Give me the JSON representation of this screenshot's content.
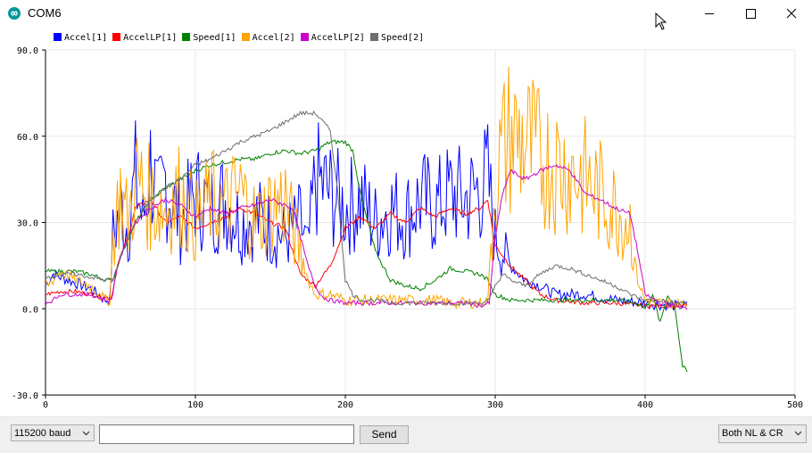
{
  "window": {
    "title": "COM6"
  },
  "icons": {
    "app": "arduino-infinity-icon",
    "minimize": "minimize-icon",
    "maximize": "maximize-icon",
    "close": "close-icon",
    "cursor": "mouse-cursor-icon",
    "dropdown": "chevron-down-icon"
  },
  "footer": {
    "baud_rate": "115200 baud",
    "input_value": "",
    "send_label": "Send",
    "line_ending": "Both NL & CR"
  },
  "chart_data": {
    "type": "line",
    "title": "",
    "xlabel": "",
    "ylabel": "",
    "xlim": [
      0,
      500
    ],
    "ylim": [
      -30,
      90
    ],
    "x_ticks": [
      "0",
      "100",
      "200",
      "300",
      "400",
      "500"
    ],
    "y_ticks": [
      "90.0",
      "60.0",
      "30.0",
      "0.0",
      "-30.0"
    ],
    "grid": true,
    "legend_position": "top-left",
    "series": [
      {
        "name": "Accel[1]",
        "color": "#0000ff",
        "style": "noisy",
        "points": [
          [
            0,
            8
          ],
          [
            5,
            12
          ],
          [
            10,
            11
          ],
          [
            20,
            9
          ],
          [
            30,
            7
          ],
          [
            40,
            3
          ],
          [
            43,
            3
          ],
          [
            45,
            25
          ],
          [
            50,
            35
          ],
          [
            55,
            28
          ],
          [
            60,
            45
          ],
          [
            65,
            30
          ],
          [
            70,
            50
          ],
          [
            75,
            35
          ],
          [
            80,
            45
          ],
          [
            90,
            30
          ],
          [
            100,
            40
          ],
          [
            110,
            35
          ],
          [
            120,
            38
          ],
          [
            130,
            30
          ],
          [
            140,
            32
          ],
          [
            150,
            28
          ],
          [
            160,
            25
          ],
          [
            170,
            30
          ],
          [
            175,
            20
          ],
          [
            180,
            45
          ],
          [
            190,
            40
          ],
          [
            200,
            35
          ],
          [
            210,
            38
          ],
          [
            220,
            30
          ],
          [
            230,
            35
          ],
          [
            240,
            32
          ],
          [
            250,
            38
          ],
          [
            260,
            35
          ],
          [
            270,
            40
          ],
          [
            280,
            38
          ],
          [
            290,
            42
          ],
          [
            295,
            45
          ],
          [
            300,
            25
          ],
          [
            310,
            15
          ],
          [
            320,
            10
          ],
          [
            330,
            8
          ],
          [
            340,
            5
          ],
          [
            360,
            5
          ],
          [
            380,
            3
          ],
          [
            400,
            2
          ],
          [
            420,
            1
          ],
          [
            428,
            1
          ]
        ]
      },
      {
        "name": "AccelLP[1]",
        "color": "#ff0000",
        "style": "smooth",
        "points": [
          [
            0,
            5
          ],
          [
            10,
            6
          ],
          [
            20,
            6
          ],
          [
            30,
            5
          ],
          [
            40,
            4
          ],
          [
            44,
            4
          ],
          [
            48,
            15
          ],
          [
            55,
            25
          ],
          [
            60,
            35
          ],
          [
            70,
            38
          ],
          [
            80,
            30
          ],
          [
            90,
            32
          ],
          [
            100,
            28
          ],
          [
            110,
            30
          ],
          [
            120,
            32
          ],
          [
            130,
            35
          ],
          [
            140,
            33
          ],
          [
            150,
            30
          ],
          [
            160,
            28
          ],
          [
            165,
            20
          ],
          [
            170,
            12
          ],
          [
            180,
            8
          ],
          [
            190,
            15
          ],
          [
            200,
            28
          ],
          [
            210,
            32
          ],
          [
            220,
            28
          ],
          [
            230,
            33
          ],
          [
            240,
            30
          ],
          [
            250,
            35
          ],
          [
            260,
            32
          ],
          [
            270,
            35
          ],
          [
            280,
            33
          ],
          [
            290,
            35
          ],
          [
            295,
            38
          ],
          [
            300,
            22
          ],
          [
            310,
            15
          ],
          [
            320,
            10
          ],
          [
            330,
            5
          ],
          [
            340,
            3
          ],
          [
            360,
            2
          ],
          [
            380,
            2
          ],
          [
            400,
            1
          ],
          [
            420,
            1
          ],
          [
            428,
            1
          ]
        ]
      },
      {
        "name": "Speed[1]",
        "color": "#008000",
        "style": "smooth",
        "points": [
          [
            0,
            13
          ],
          [
            20,
            13
          ],
          [
            30,
            12
          ],
          [
            40,
            10
          ],
          [
            45,
            10
          ],
          [
            50,
            18
          ],
          [
            60,
            30
          ],
          [
            70,
            38
          ],
          [
            80,
            42
          ],
          [
            90,
            45
          ],
          [
            100,
            48
          ],
          [
            110,
            50
          ],
          [
            120,
            51
          ],
          [
            130,
            52
          ],
          [
            140,
            52
          ],
          [
            150,
            54
          ],
          [
            160,
            55
          ],
          [
            170,
            54
          ],
          [
            180,
            55
          ],
          [
            190,
            58
          ],
          [
            200,
            58
          ],
          [
            205,
            55
          ],
          [
            210,
            40
          ],
          [
            220,
            20
          ],
          [
            230,
            10
          ],
          [
            240,
            8
          ],
          [
            250,
            7
          ],
          [
            260,
            10
          ],
          [
            270,
            14
          ],
          [
            280,
            13
          ],
          [
            290,
            12
          ],
          [
            295,
            10
          ],
          [
            300,
            5
          ],
          [
            310,
            3
          ],
          [
            320,
            3
          ],
          [
            330,
            3
          ],
          [
            340,
            3
          ],
          [
            360,
            3
          ],
          [
            380,
            3
          ],
          [
            395,
            2
          ],
          [
            400,
            0
          ],
          [
            405,
            5
          ],
          [
            410,
            -5
          ],
          [
            415,
            5
          ],
          [
            420,
            0
          ],
          [
            425,
            -20
          ],
          [
            428,
            -22
          ]
        ]
      },
      {
        "name": "Accel[2]",
        "color": "#ffa500",
        "style": "noisy",
        "points": [
          [
            0,
            8
          ],
          [
            5,
            10
          ],
          [
            10,
            13
          ],
          [
            20,
            10
          ],
          [
            30,
            8
          ],
          [
            40,
            3
          ],
          [
            43,
            3
          ],
          [
            45,
            25
          ],
          [
            50,
            40
          ],
          [
            55,
            30
          ],
          [
            60,
            45
          ],
          [
            70,
            38
          ],
          [
            80,
            35
          ],
          [
            90,
            40
          ],
          [
            100,
            30
          ],
          [
            110,
            38
          ],
          [
            120,
            35
          ],
          [
            130,
            40
          ],
          [
            140,
            30
          ],
          [
            150,
            35
          ],
          [
            160,
            38
          ],
          [
            165,
            28
          ],
          [
            170,
            20
          ],
          [
            175,
            10
          ],
          [
            180,
            5
          ],
          [
            190,
            5
          ],
          [
            200,
            3
          ],
          [
            210,
            3
          ],
          [
            220,
            3
          ],
          [
            230,
            3
          ],
          [
            240,
            3
          ],
          [
            250,
            3
          ],
          [
            260,
            3
          ],
          [
            270,
            2
          ],
          [
            280,
            2
          ],
          [
            290,
            2
          ],
          [
            295,
            3
          ],
          [
            300,
            45
          ],
          [
            305,
            55
          ],
          [
            310,
            60
          ],
          [
            320,
            58
          ],
          [
            330,
            52
          ],
          [
            340,
            50
          ],
          [
            350,
            48
          ],
          [
            360,
            45
          ],
          [
            370,
            40
          ],
          [
            380,
            35
          ],
          [
            390,
            30
          ],
          [
            395,
            10
          ],
          [
            400,
            3
          ],
          [
            410,
            2
          ],
          [
            420,
            2
          ],
          [
            428,
            1
          ]
        ]
      },
      {
        "name": "AccelLP[2]",
        "color": "#cc00cc",
        "style": "smooth",
        "points": [
          [
            0,
            2
          ],
          [
            5,
            3
          ],
          [
            10,
            5
          ],
          [
            20,
            5
          ],
          [
            30,
            5
          ],
          [
            40,
            3
          ],
          [
            44,
            3
          ],
          [
            48,
            15
          ],
          [
            55,
            25
          ],
          [
            60,
            30
          ],
          [
            70,
            35
          ],
          [
            80,
            38
          ],
          [
            90,
            36
          ],
          [
            100,
            32
          ],
          [
            110,
            35
          ],
          [
            120,
            33
          ],
          [
            130,
            35
          ],
          [
            140,
            36
          ],
          [
            150,
            38
          ],
          [
            160,
            36
          ],
          [
            165,
            35
          ],
          [
            170,
            25
          ],
          [
            175,
            15
          ],
          [
            180,
            8
          ],
          [
            185,
            4
          ],
          [
            190,
            3
          ],
          [
            200,
            2
          ],
          [
            210,
            2
          ],
          [
            220,
            2
          ],
          [
            230,
            2
          ],
          [
            240,
            2
          ],
          [
            250,
            2
          ],
          [
            260,
            2
          ],
          [
            270,
            2
          ],
          [
            280,
            2
          ],
          [
            290,
            1
          ],
          [
            296,
            2
          ],
          [
            300,
            25
          ],
          [
            305,
            40
          ],
          [
            310,
            48
          ],
          [
            320,
            45
          ],
          [
            330,
            48
          ],
          [
            340,
            50
          ],
          [
            350,
            48
          ],
          [
            360,
            40
          ],
          [
            370,
            38
          ],
          [
            380,
            35
          ],
          [
            390,
            33
          ],
          [
            395,
            20
          ],
          [
            400,
            5
          ],
          [
            410,
            2
          ],
          [
            420,
            1
          ],
          [
            428,
            0
          ]
        ]
      },
      {
        "name": "Speed[2]",
        "color": "#6e6e6e",
        "style": "smooth",
        "points": [
          [
            0,
            11
          ],
          [
            10,
            12
          ],
          [
            20,
            12
          ],
          [
            30,
            11
          ],
          [
            40,
            10
          ],
          [
            45,
            10
          ],
          [
            50,
            18
          ],
          [
            60,
            30
          ],
          [
            70,
            38
          ],
          [
            80,
            42
          ],
          [
            90,
            45
          ],
          [
            100,
            50
          ],
          [
            110,
            52
          ],
          [
            120,
            55
          ],
          [
            130,
            58
          ],
          [
            140,
            60
          ],
          [
            150,
            62
          ],
          [
            160,
            65
          ],
          [
            170,
            68
          ],
          [
            180,
            68
          ],
          [
            185,
            65
          ],
          [
            190,
            62
          ],
          [
            195,
            40
          ],
          [
            200,
            10
          ],
          [
            205,
            5
          ],
          [
            210,
            3
          ],
          [
            220,
            3
          ],
          [
            230,
            2
          ],
          [
            240,
            2
          ],
          [
            250,
            2
          ],
          [
            260,
            2
          ],
          [
            270,
            2
          ],
          [
            280,
            2
          ],
          [
            290,
            2
          ],
          [
            296,
            3
          ],
          [
            300,
            8
          ],
          [
            305,
            12
          ],
          [
            310,
            10
          ],
          [
            320,
            8
          ],
          [
            330,
            12
          ],
          [
            340,
            15
          ],
          [
            350,
            14
          ],
          [
            360,
            12
          ],
          [
            370,
            10
          ],
          [
            380,
            8
          ],
          [
            390,
            5
          ],
          [
            400,
            3
          ],
          [
            410,
            3
          ],
          [
            420,
            2
          ],
          [
            428,
            2
          ]
        ]
      }
    ]
  }
}
